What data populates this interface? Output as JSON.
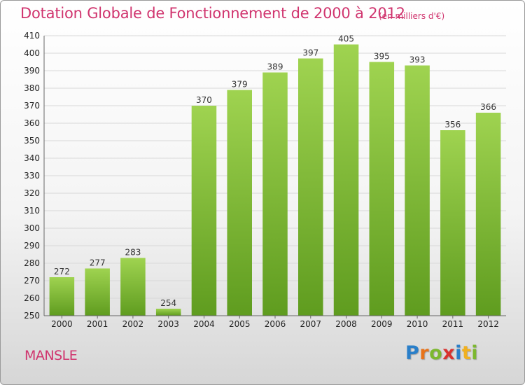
{
  "header": {
    "title": "Dotation Globale de Fonctionnement de 2000 à 2012",
    "unit": "(en milliers d'€)"
  },
  "footer": {
    "commune": "MANSLE",
    "logo": [
      "P",
      "r",
      "o",
      "x",
      "i",
      "t",
      "i"
    ],
    "logo_colors": [
      "#2a7fc9",
      "#e8731a",
      "#7cb82f",
      "#d9322f",
      "#2a7fc9",
      "#f0b020",
      "#7cb82f"
    ]
  },
  "chart_data": {
    "type": "bar",
    "title": "Dotation Globale de Fonctionnement de 2000 à 2012",
    "subtitle": "(en milliers d'€)",
    "categories": [
      "2000",
      "2001",
      "2002",
      "2003",
      "2004",
      "2005",
      "2006",
      "2007",
      "2008",
      "2009",
      "2010",
      "2011",
      "2012"
    ],
    "values": [
      272,
      277,
      283,
      254,
      370,
      379,
      389,
      397,
      405,
      395,
      393,
      356,
      366
    ],
    "ylim": [
      250,
      410
    ],
    "yticks": [
      250,
      260,
      270,
      280,
      290,
      300,
      310,
      320,
      330,
      340,
      350,
      360,
      370,
      380,
      390,
      400,
      410
    ],
    "grid": true,
    "bar_color": "#8cc63f",
    "bar_color_dark": "#5e9a1e"
  }
}
